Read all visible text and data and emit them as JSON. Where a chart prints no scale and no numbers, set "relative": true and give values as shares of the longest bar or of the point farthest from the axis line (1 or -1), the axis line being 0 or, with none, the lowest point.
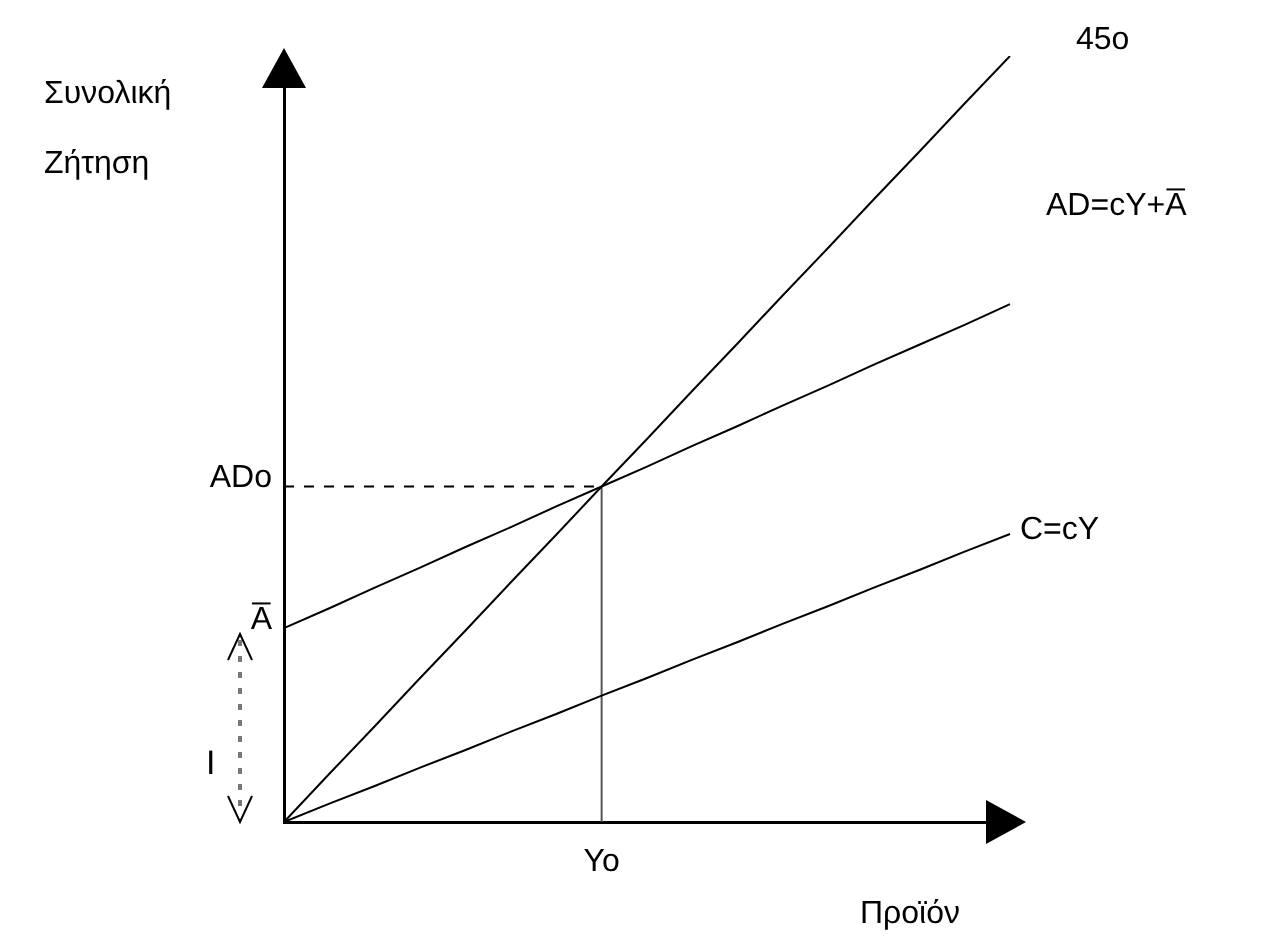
{
  "chart_data": {
    "type": "line",
    "relative": true,
    "xlabel": "Προϊόν",
    "ylabel": "Συνολική Ζήτηση",
    "categories": [
      null,
      null,
      null,
      null,
      null,
      null,
      null,
      null,
      null,
      null,
      null,
      null,
      null,
      null,
      null,
      null,
      null
    ],
    "series": [
      {
        "name": "45o",
        "color": "#000000",
        "values": [
          0,
          0.063,
          0.125,
          0.188,
          0.25,
          0.313,
          0.375,
          0.438,
          0.5,
          0.563,
          0.625,
          0.688,
          0.75,
          0.813,
          0.875,
          0.938,
          1
        ]
      },
      {
        "name": "AD=cY+A̅",
        "color": "#000000",
        "values": [
          0.253,
          0.279,
          0.306,
          0.332,
          0.359,
          0.385,
          0.412,
          0.438,
          0.464,
          0.491,
          0.517,
          0.544,
          0.57,
          0.597,
          0.623,
          0.649,
          0.676
        ]
      },
      {
        "name": "C=cY",
        "color": "#000000",
        "values": [
          0,
          0.024,
          0.047,
          0.071,
          0.094,
          0.118,
          0.141,
          0.165,
          0.188,
          0.212,
          0.235,
          0.259,
          0.282,
          0.306,
          0.329,
          0.353,
          0.376
        ]
      }
    ],
    "ref_lines": [
      {
        "axis": "y",
        "value": 0.438,
        "label": "ADo",
        "line_style": "dashed",
        "color": "#000000"
      }
    ],
    "annotations": [
      "Yo",
      "A̅",
      "I"
    ],
    "grid": false,
    "legend": false,
    "marker": "none",
    "line_style": "solid"
  }
}
